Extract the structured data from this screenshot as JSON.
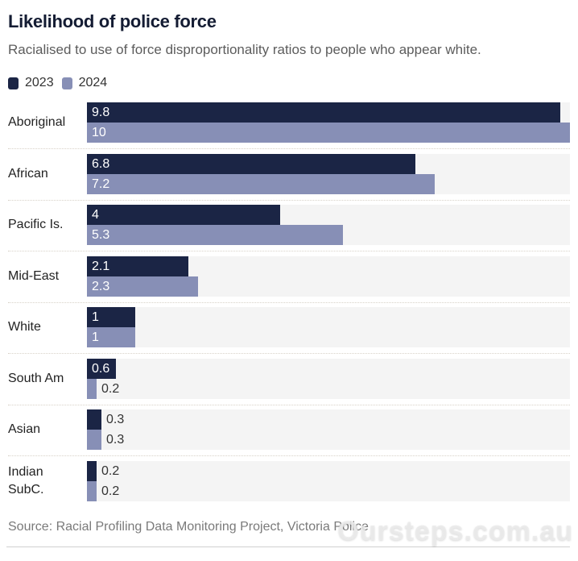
{
  "chart_data": {
    "type": "bar",
    "orientation": "horizontal",
    "title": "Likelihood of police force",
    "subtitle": "Racialised to use of force disproportionality ratios to people who appear white.",
    "categories": [
      "Aboriginal",
      "African",
      "Pacific Is.",
      "Mid-East",
      "White",
      "South Am",
      "Asian",
      "Indian SubC."
    ],
    "series": [
      {
        "name": "2023",
        "color": "#1b2545",
        "values": [
          9.8,
          6.8,
          4,
          2.1,
          1,
          0.6,
          0.3,
          0.2
        ]
      },
      {
        "name": "2024",
        "color": "#878fb6",
        "values": [
          10,
          7.2,
          5.3,
          2.3,
          1,
          0.2,
          0.3,
          0.2
        ]
      }
    ],
    "value_labels": {
      "2023": [
        "9.8",
        "6.8",
        "4",
        "2.1",
        "1",
        "0.6",
        "0.3",
        "0.2"
      ],
      "2024": [
        "10",
        "7.2",
        "5.3",
        "2.3",
        "1",
        "0.2",
        "0.3",
        "0.2"
      ]
    },
    "xlim": [
      0,
      10
    ],
    "xlabel": "",
    "ylabel": "",
    "grid": false,
    "legend": "top-left",
    "source": "Source: Racial Profiling Data Monitoring Project, Victoria Police"
  },
  "watermark": "Oursteps.com.au",
  "colors": {
    "series_2023": "#1b2545",
    "series_2024": "#878fb6",
    "track": "#f4f4f4"
  }
}
